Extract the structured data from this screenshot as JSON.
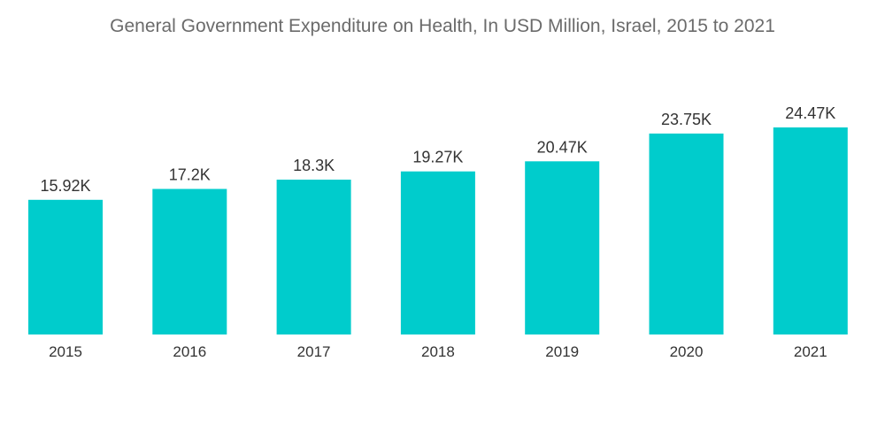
{
  "chart_data": {
    "type": "bar",
    "title": "General Government Expenditure on Health, In USD Million, Israel, 2015 to 2021",
    "categories": [
      "2015",
      "2016",
      "2017",
      "2018",
      "2019",
      "2020",
      "2021"
    ],
    "values": [
      15.92,
      17.2,
      18.3,
      19.27,
      20.47,
      23.75,
      24.47
    ],
    "value_unit": "thousand USD million",
    "data_labels": [
      "15.92K",
      "17.2K",
      "18.3K",
      "19.27K",
      "20.47K",
      "23.75K",
      "24.47K"
    ],
    "xlabel": "",
    "ylabel": "",
    "ylim": [
      0,
      24.47
    ],
    "grid": false,
    "legend": "none",
    "bar_color": "#00cccc",
    "baseline_color": "#ffffff"
  }
}
